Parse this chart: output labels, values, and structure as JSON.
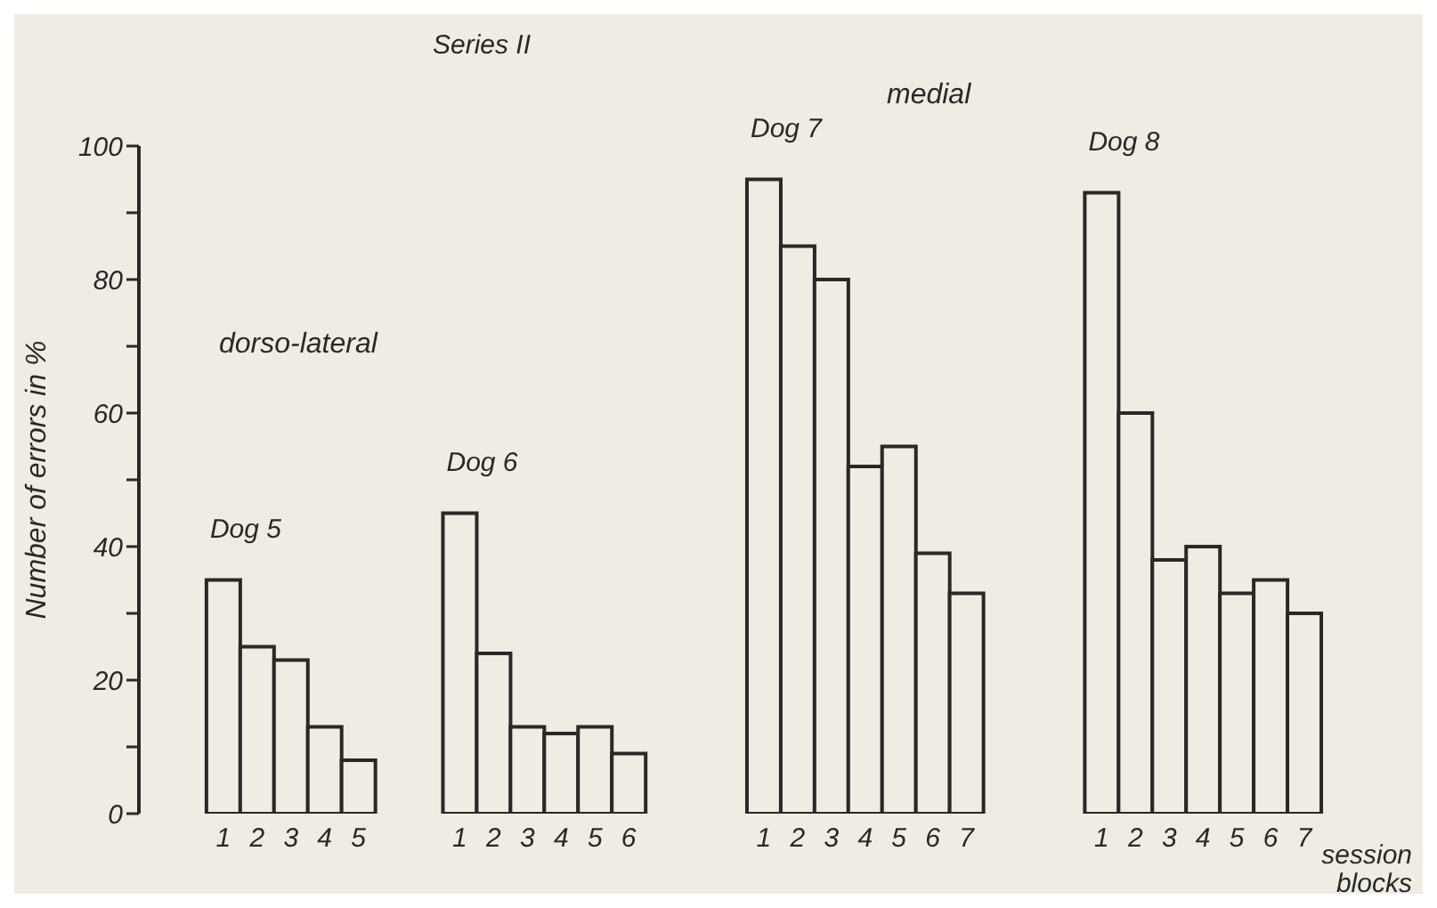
{
  "chart_data": {
    "type": "bar",
    "title": "Series II",
    "ylabel": "Number of errors in %",
    "xlabel": "session blocks",
    "annotations": [
      "dorso-lateral",
      "medial"
    ],
    "categories": [
      null,
      null,
      "1",
      "2",
      "3",
      "4",
      "5",
      null,
      null,
      "1",
      "2",
      "3",
      "4",
      "5",
      "6",
      null,
      null,
      null,
      "1",
      "2",
      "3",
      "4",
      "5",
      "6",
      "7",
      null,
      null,
      null,
      "1",
      "2",
      "3",
      "4",
      "5",
      "6",
      "7"
    ],
    "series": [
      {
        "name": "Dog 5",
        "color": "#efece3",
        "values": [
          null,
          null,
          35,
          25,
          23,
          13,
          8,
          null,
          null,
          null,
          null,
          null,
          null,
          null,
          null,
          null,
          null,
          null,
          null,
          null,
          null,
          null,
          null,
          null,
          null,
          null,
          null,
          null,
          null,
          null,
          null,
          null,
          null,
          null,
          null
        ]
      },
      {
        "name": "Dog 6",
        "color": "#efece3",
        "values": [
          null,
          null,
          null,
          null,
          null,
          null,
          null,
          null,
          null,
          45,
          24,
          13,
          12,
          13,
          9,
          null,
          null,
          null,
          null,
          null,
          null,
          null,
          null,
          null,
          null,
          null,
          null,
          null,
          null,
          null,
          null,
          null,
          null,
          null,
          null
        ]
      },
      {
        "name": "Dog 7",
        "color": "#efece3",
        "values": [
          null,
          null,
          null,
          null,
          null,
          null,
          null,
          null,
          null,
          null,
          null,
          null,
          null,
          null,
          null,
          null,
          null,
          null,
          95,
          85,
          80,
          52,
          55,
          39,
          33,
          null,
          null,
          null,
          null,
          null,
          null,
          null,
          null,
          null,
          null
        ]
      },
      {
        "name": "Dog 8",
        "color": "#efece3",
        "values": [
          null,
          null,
          null,
          null,
          null,
          null,
          null,
          null,
          null,
          null,
          null,
          null,
          null,
          null,
          null,
          null,
          null,
          null,
          null,
          null,
          null,
          null,
          null,
          null,
          null,
          null,
          null,
          null,
          93,
          60,
          38,
          40,
          33,
          35,
          30
        ]
      }
    ],
    "ylim": [
      0,
      100
    ],
    "yticks": [
      0,
      {
        "value": 10,
        "label": null
      },
      20,
      {
        "value": 30,
        "label": null
      },
      40,
      {
        "value": 50,
        "label": null
      },
      60,
      {
        "value": 70,
        "label": null
      },
      80,
      {
        "value": 90,
        "label": null
      },
      100
    ],
    "grid": false,
    "legend": false
  }
}
